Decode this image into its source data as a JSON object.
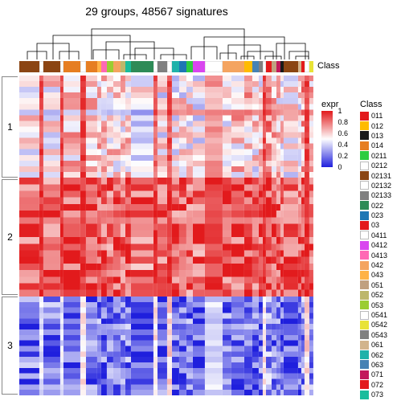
{
  "title": "29 groups, 48567 signatures",
  "class_strip_label": "Class",
  "row_labels": [
    "1",
    "2",
    "3"
  ],
  "expr_legend": {
    "title": "expr",
    "ticks": [
      {
        "v": "1",
        "pos": 0
      },
      {
        "v": "0.8",
        "pos": 0.2
      },
      {
        "v": "0.6",
        "pos": 0.4
      },
      {
        "v": "0.4",
        "pos": 0.6
      },
      {
        "v": "0.2",
        "pos": 0.8
      },
      {
        "v": "0",
        "pos": 1.0
      }
    ],
    "gradient_top": "#e21a1c",
    "gradient_mid": "#fefefe",
    "gradient_bot": "#1f1fdd"
  },
  "class_legend_title": "Class",
  "classes": [
    {
      "label": "011",
      "color": "#e31a1c"
    },
    {
      "label": "012",
      "color": "#ffbb00"
    },
    {
      "label": "013",
      "color": "#1a1a1a"
    },
    {
      "label": "014",
      "color": "#e67e22"
    },
    {
      "label": "0211",
      "color": "#2ecc40"
    },
    {
      "label": "0212",
      "color": "#ffffff"
    },
    {
      "label": "02131",
      "color": "#8b4513"
    },
    {
      "label": "02132",
      "color": "#ffffff"
    },
    {
      "label": "02133",
      "color": "#808080"
    },
    {
      "label": "022",
      "color": "#2e8b57"
    },
    {
      "label": "023",
      "color": "#1f77b4"
    },
    {
      "label": "03",
      "color": "#e31a1c"
    },
    {
      "label": "0411",
      "color": "#ffffff"
    },
    {
      "label": "0412",
      "color": "#d946ef"
    },
    {
      "label": "0413",
      "color": "#ff69b4"
    },
    {
      "label": "042",
      "color": "#f4a460"
    },
    {
      "label": "043",
      "color": "#ffb347"
    },
    {
      "label": "051",
      "color": "#c0a080"
    },
    {
      "label": "052",
      "color": "#bdb76b"
    },
    {
      "label": "053",
      "color": "#9acd32"
    },
    {
      "label": "0541",
      "color": "#ffffff"
    },
    {
      "label": "0542",
      "color": "#e8e337"
    },
    {
      "label": "0543",
      "color": "#808080"
    },
    {
      "label": "061",
      "color": "#d2b48c"
    },
    {
      "label": "062",
      "color": "#20b2aa"
    },
    {
      "label": "063",
      "color": "#4682b4"
    },
    {
      "label": "071",
      "color": "#c2185b"
    },
    {
      "label": "072",
      "color": "#e31a1c"
    },
    {
      "label": "073",
      "color": "#1abc9c"
    }
  ],
  "columns": [
    {
      "w": 1.8,
      "class_color": "#8b4513",
      "band": [
        0.55,
        0.85,
        0.18
      ]
    },
    {
      "w": 0.4,
      "class_color": "#ffffff",
      "band": [
        0.9,
        0.95,
        0.45
      ],
      "light": true
    },
    {
      "w": 1.5,
      "class_color": "#8b4513",
      "band": [
        0.52,
        0.82,
        0.2
      ]
    },
    {
      "w": 0.3,
      "class_color": "#ffffff",
      "band": [
        0.9,
        0.95,
        0.45
      ],
      "light": true
    },
    {
      "w": 1.6,
      "class_color": "#e67e22",
      "band": [
        0.6,
        0.88,
        0.15
      ]
    },
    {
      "w": 0.5,
      "class_color": "#ffffff",
      "band": [
        0.9,
        0.95,
        0.55
      ],
      "light": true
    },
    {
      "w": 1.0,
      "class_color": "#e67e22",
      "band": [
        0.58,
        0.85,
        0.18
      ]
    },
    {
      "w": 0.4,
      "class_color": "#ffb347",
      "band": [
        0.62,
        0.9,
        0.22
      ]
    },
    {
      "w": 0.5,
      "class_color": "#ff69b4",
      "band": [
        0.58,
        0.86,
        0.2
      ]
    },
    {
      "w": 0.6,
      "class_color": "#9acd32",
      "band": [
        0.55,
        0.84,
        0.18
      ]
    },
    {
      "w": 0.6,
      "class_color": "#f4a460",
      "band": [
        0.6,
        0.87,
        0.2
      ]
    },
    {
      "w": 0.5,
      "class_color": "#bdb76b",
      "band": [
        0.57,
        0.85,
        0.19
      ]
    },
    {
      "w": 0.5,
      "class_color": "#1abc9c",
      "band": [
        0.59,
        0.88,
        0.21
      ]
    },
    {
      "w": 2.0,
      "class_color": "#2e8b57",
      "band": [
        0.48,
        0.82,
        0.14
      ]
    },
    {
      "w": 0.4,
      "class_color": "#ffffff",
      "band": [
        0.85,
        0.95,
        0.55
      ],
      "light": true
    },
    {
      "w": 0.9,
      "class_color": "#808080",
      "band": [
        0.5,
        0.8,
        0.16
      ]
    },
    {
      "w": 0.4,
      "class_color": "#ffffff",
      "band": [
        0.88,
        0.95,
        0.6
      ],
      "light": true
    },
    {
      "w": 0.7,
      "class_color": "#20b2aa",
      "band": [
        0.54,
        0.83,
        0.17
      ]
    },
    {
      "w": 0.6,
      "class_color": "#1f77b4",
      "band": [
        0.52,
        0.81,
        0.15
      ]
    },
    {
      "w": 0.6,
      "class_color": "#2ecc40",
      "band": [
        0.56,
        0.84,
        0.19
      ]
    },
    {
      "w": 1.1,
      "class_color": "#d946ef",
      "band": [
        0.53,
        0.82,
        0.16
      ]
    },
    {
      "w": 1.6,
      "class_color": "#ffffff",
      "band": [
        0.7,
        0.92,
        0.4
      ],
      "light": true
    },
    {
      "w": 0.8,
      "class_color": "#f4a460",
      "band": [
        0.58,
        0.86,
        0.18
      ]
    },
    {
      "w": 1.2,
      "class_color": "#f4a460",
      "band": [
        0.6,
        0.88,
        0.2
      ]
    },
    {
      "w": 0.7,
      "class_color": "#ffbb00",
      "band": [
        0.62,
        0.89,
        0.22
      ]
    },
    {
      "w": 0.6,
      "class_color": "#4682b4",
      "band": [
        0.55,
        0.84,
        0.17
      ]
    },
    {
      "w": 0.4,
      "class_color": "#808080",
      "band": [
        0.57,
        0.85,
        0.19
      ]
    },
    {
      "w": 0.3,
      "class_color": "#ffffff",
      "band": [
        0.9,
        0.96,
        0.55
      ],
      "light": true
    },
    {
      "w": 0.5,
      "class_color": "#e31a1c",
      "band": [
        0.72,
        0.92,
        0.25
      ]
    },
    {
      "w": 0.4,
      "class_color": "#c0a080",
      "band": [
        0.6,
        0.87,
        0.2
      ]
    },
    {
      "w": 0.4,
      "class_color": "#c2185b",
      "band": [
        0.58,
        0.86,
        0.19
      ]
    },
    {
      "w": 0.3,
      "class_color": "#1a1a1a",
      "band": [
        0.55,
        0.84,
        0.17
      ]
    },
    {
      "w": 1.3,
      "class_color": "#8b4513",
      "band": [
        0.52,
        0.82,
        0.15
      ]
    },
    {
      "w": 0.3,
      "class_color": "#d2b48c",
      "band": [
        0.56,
        0.85,
        0.18
      ]
    },
    {
      "w": 0.3,
      "class_color": "#e31a1c",
      "band": [
        0.7,
        0.91,
        0.24
      ]
    },
    {
      "w": 0.4,
      "class_color": "#ffffff",
      "band": [
        0.9,
        0.96,
        0.58
      ],
      "light": true
    },
    {
      "w": 0.4,
      "class_color": "#e8e337",
      "band": [
        0.6,
        0.88,
        0.21
      ]
    }
  ],
  "heatmap_style": {
    "color_high": "#e21a1c",
    "color_mid": "#ffffff",
    "color_low": "#1f1fdd",
    "row_block_heights": [
      0.32,
      0.37,
      0.31
    ],
    "noise_opacity": 0.28
  },
  "background": "#ffffff"
}
